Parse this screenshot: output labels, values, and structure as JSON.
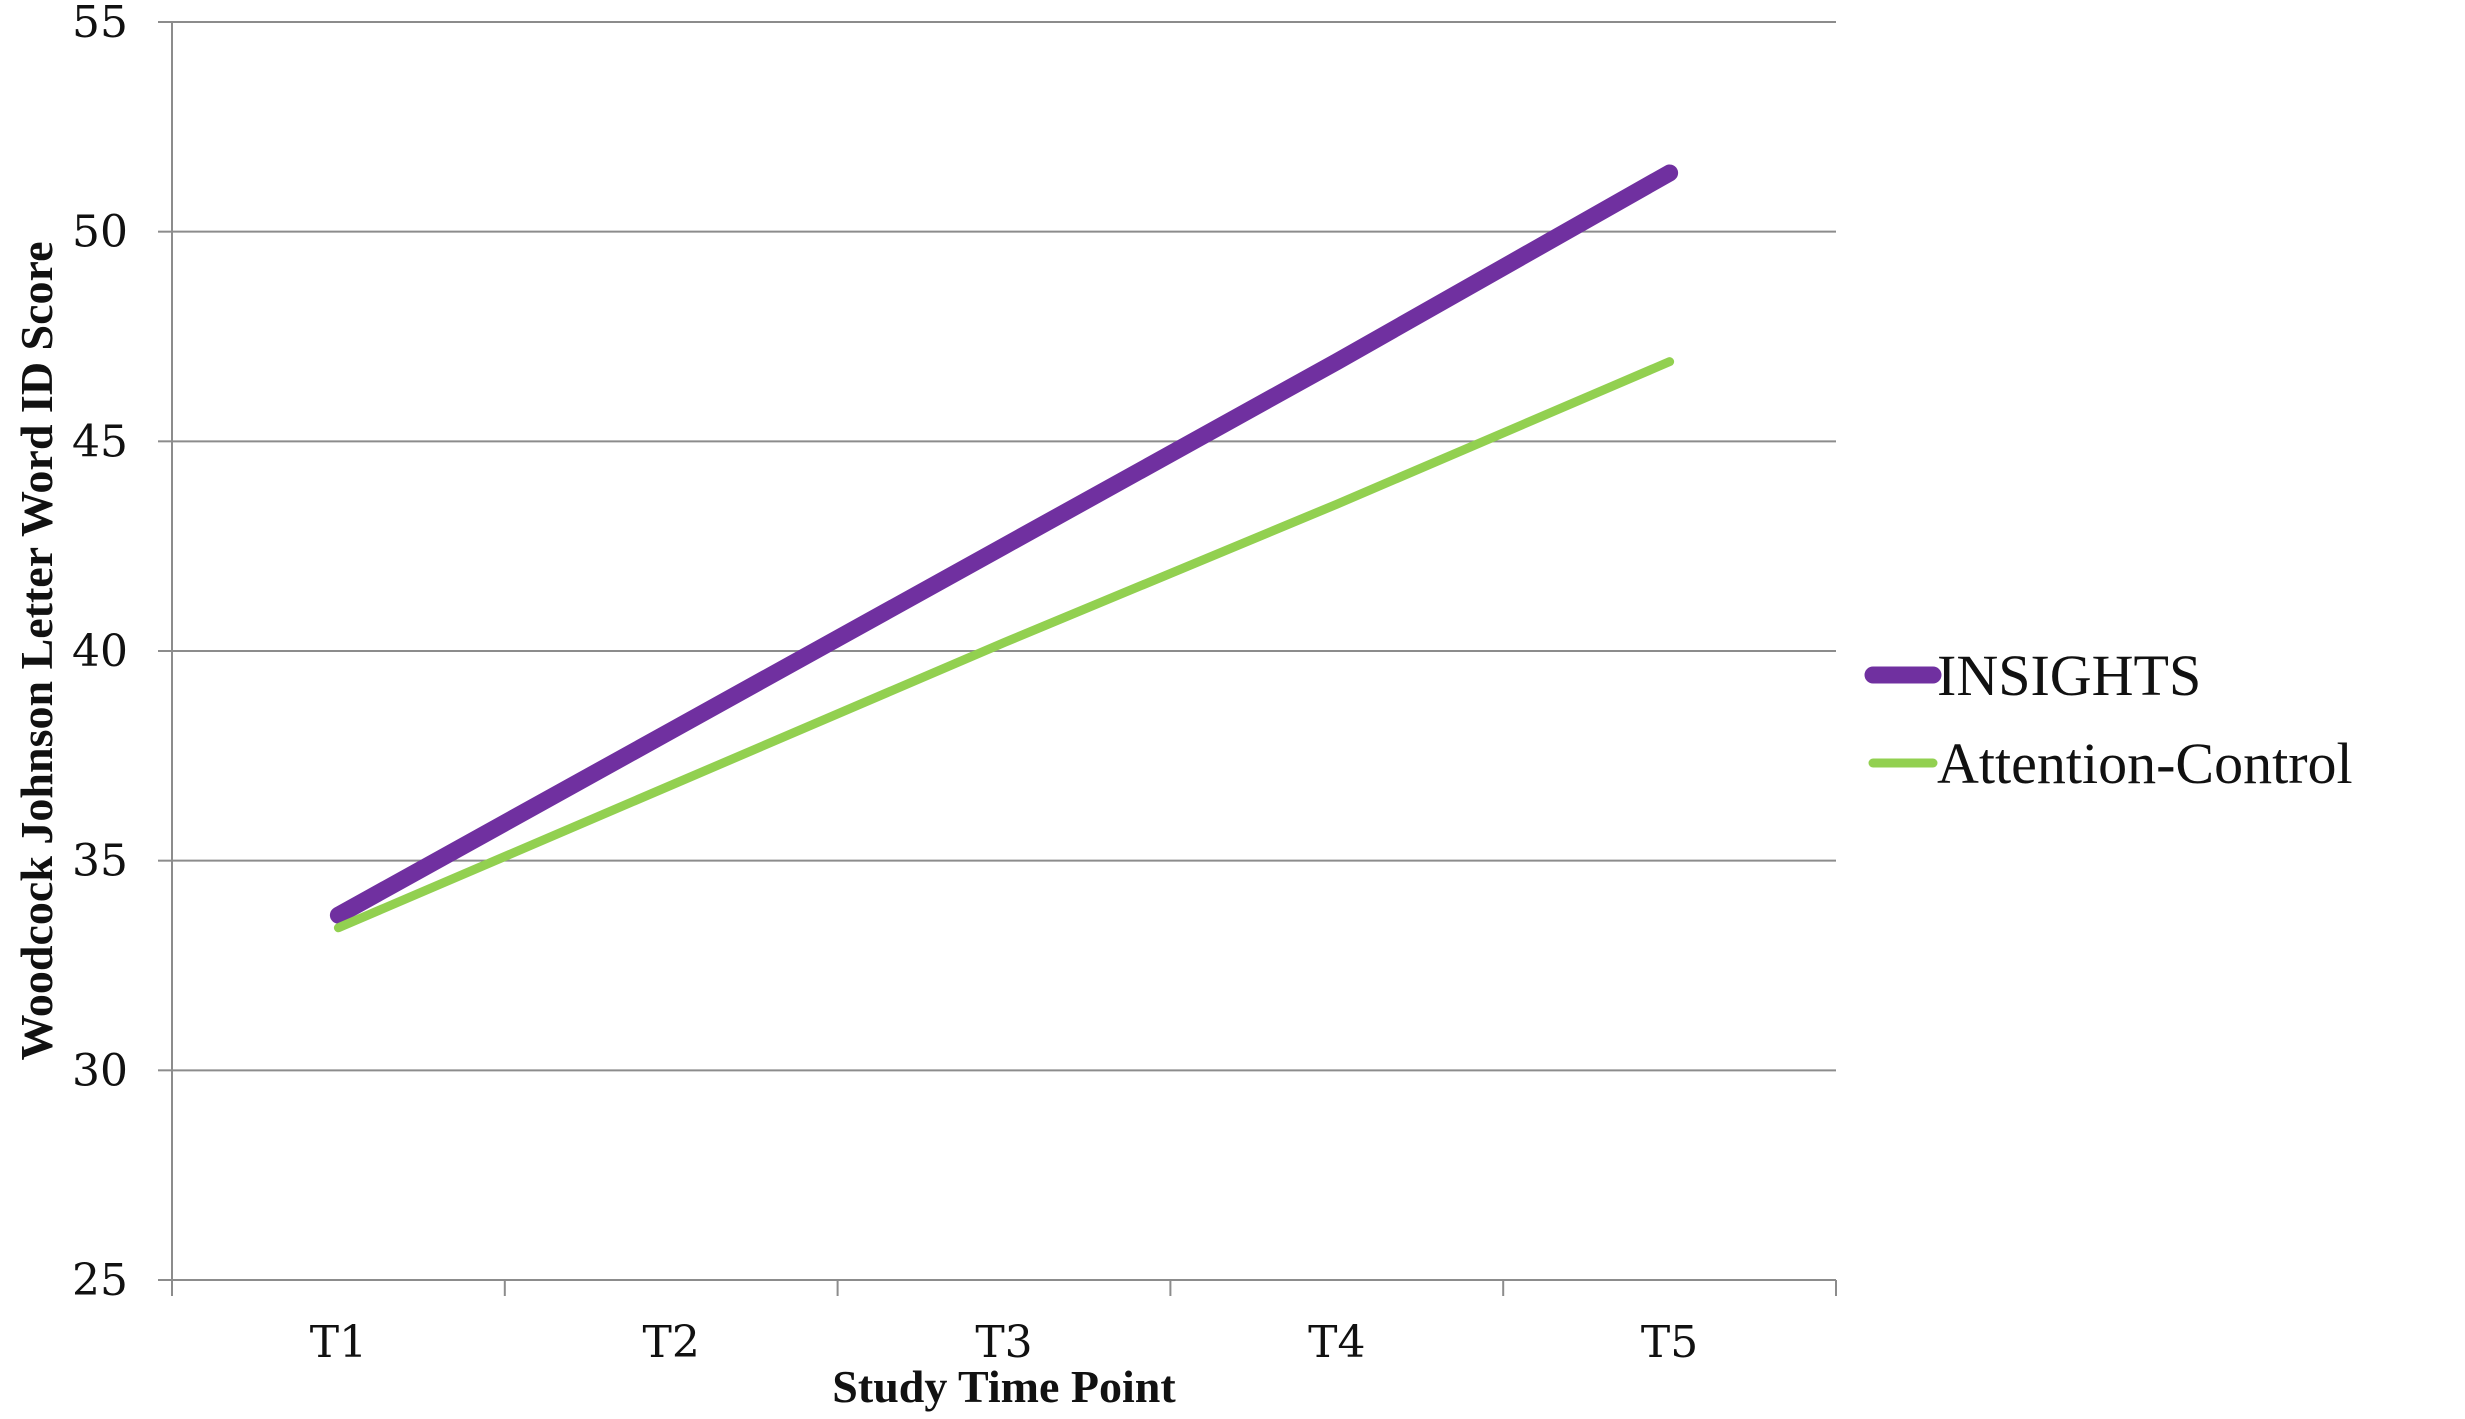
{
  "chart_data": {
    "type": "line",
    "categories": [
      "T1",
      "T2",
      "T3",
      "T4",
      "T5"
    ],
    "series": [
      {
        "name": "INSIGHTS",
        "values": [
          33.7,
          38.1,
          42.5,
          46.9,
          51.4
        ],
        "color": "#7030A0"
      },
      {
        "name": "Attention-Control",
        "values": [
          33.4,
          36.8,
          40.2,
          43.5,
          46.9
        ],
        "color": "#92D050"
      }
    ],
    "xlabel": "Study Time Point",
    "ylabel": "Woodcock Johnson Letter Word ID Score",
    "ylim": [
      25,
      55
    ],
    "yticks": [
      25,
      30,
      35,
      40,
      45,
      50,
      55
    ],
    "grid": true,
    "legend_position": "right"
  }
}
